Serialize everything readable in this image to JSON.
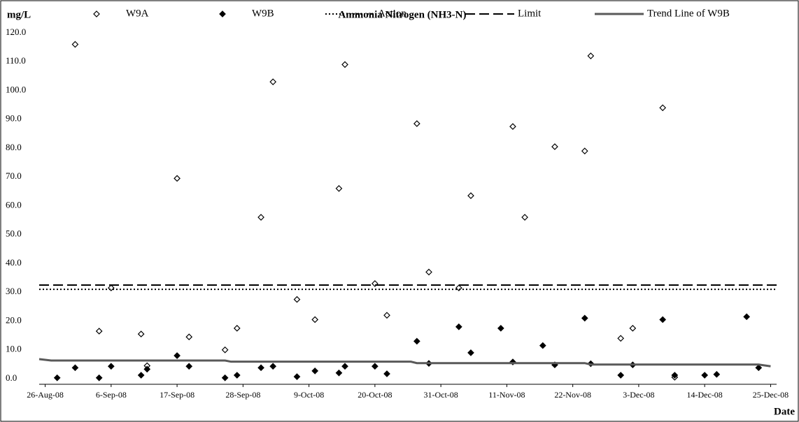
{
  "chart_data": {
    "type": "scatter",
    "title": "Ammonia Nitrogen (NH3-N)",
    "y_label": "mg/L",
    "x_label": "Date",
    "xlim": [
      "2008-08-25",
      "2008-12-26"
    ],
    "ylim": [
      0,
      120
    ],
    "xticks": [
      {
        "value": "2008-08-26",
        "label": "26-Aug-08"
      },
      {
        "value": "2008-09-06",
        "label": "6-Sep-08"
      },
      {
        "value": "2008-09-17",
        "label": "17-Sep-08"
      },
      {
        "value": "2008-09-28",
        "label": "28-Sep-08"
      },
      {
        "value": "2008-10-09",
        "label": "9-Oct-08"
      },
      {
        "value": "2008-10-20",
        "label": "20-Oct-08"
      },
      {
        "value": "2008-10-31",
        "label": "31-Oct-08"
      },
      {
        "value": "2008-11-11",
        "label": "11-Nov-08"
      },
      {
        "value": "2008-11-22",
        "label": "22-Nov-08"
      },
      {
        "value": "2008-12-03",
        "label": "3-Dec-08"
      },
      {
        "value": "2008-12-14",
        "label": "14-Dec-08"
      },
      {
        "value": "2008-12-25",
        "label": "25-Dec-08"
      }
    ],
    "yticks": [
      {
        "value": 0,
        "label": "0.0"
      },
      {
        "value": 10,
        "label": "10.0"
      },
      {
        "value": 20,
        "label": "20.0"
      },
      {
        "value": 30,
        "label": "30.0"
      },
      {
        "value": 40,
        "label": "40.0"
      },
      {
        "value": 50,
        "label": "50.0"
      },
      {
        "value": 60,
        "label": "60.0"
      },
      {
        "value": 70,
        "label": "70.0"
      },
      {
        "value": 80,
        "label": "80.0"
      },
      {
        "value": 90,
        "label": "90.0"
      },
      {
        "value": 100,
        "label": "100.0"
      },
      {
        "value": 110,
        "label": "110.0"
      },
      {
        "value": 120,
        "label": "120.0"
      }
    ],
    "series": [
      {
        "name": "W9A",
        "color": "#000000",
        "marker": "diamond-open",
        "x": [
          "2008-08-31",
          "2008-09-04",
          "2008-09-06",
          "2008-09-11",
          "2008-09-12",
          "2008-09-17",
          "2008-09-19",
          "2008-09-25",
          "2008-09-27",
          "2008-10-01",
          "2008-10-03",
          "2008-10-07",
          "2008-10-10",
          "2008-10-14",
          "2008-10-15",
          "2008-10-20",
          "2008-10-22",
          "2008-10-27",
          "2008-10-29",
          "2008-11-03",
          "2008-11-05",
          "2008-11-12",
          "2008-11-14",
          "2008-11-19",
          "2008-11-24",
          "2008-11-25",
          "2008-11-30",
          "2008-12-02",
          "2008-12-07",
          "2008-12-09"
        ],
        "values": [
          116,
          16.5,
          31.5,
          15.5,
          4.5,
          69.5,
          14.5,
          10,
          17.5,
          56,
          103,
          27.5,
          20.5,
          66,
          109,
          33,
          22,
          88.5,
          37,
          31.5,
          63.5,
          87.5,
          56,
          80.5,
          79,
          112,
          14,
          17.5,
          94,
          0.5
        ]
      },
      {
        "name": "W9B",
        "color": "#000000",
        "marker": "diamond",
        "x": [
          "2008-08-28",
          "2008-08-31",
          "2008-09-04",
          "2008-09-06",
          "2008-09-11",
          "2008-09-12",
          "2008-09-17",
          "2008-09-19",
          "2008-09-25",
          "2008-09-27",
          "2008-10-01",
          "2008-10-03",
          "2008-10-07",
          "2008-10-10",
          "2008-10-14",
          "2008-10-15",
          "2008-10-20",
          "2008-10-22",
          "2008-10-27",
          "2008-10-29",
          "2008-11-03",
          "2008-11-05",
          "2008-11-10",
          "2008-11-12",
          "2008-11-17",
          "2008-11-19",
          "2008-11-24",
          "2008-11-25",
          "2008-11-30",
          "2008-12-02",
          "2008-12-07",
          "2008-12-09",
          "2008-12-14",
          "2008-12-16",
          "2008-12-21",
          "2008-12-23"
        ],
        "values": [
          0.3,
          3.8,
          0.3,
          4.3,
          1.2,
          3.3,
          8,
          4.3,
          0.3,
          1.2,
          3.8,
          4.3,
          0.7,
          2.7,
          2,
          4.3,
          4.3,
          1.7,
          13,
          5.3,
          18,
          9,
          17.5,
          5.8,
          11.5,
          4.8,
          21,
          5.2,
          1.2,
          4.8,
          20.5,
          1.2,
          1.2,
          1.5,
          21.5,
          3.8
        ]
      },
      {
        "name": "Action",
        "color": "#000000",
        "line": "dotted",
        "x": [
          "2008-08-25",
          "2008-12-26"
        ],
        "values": [
          31,
          31
        ]
      },
      {
        "name": "Limit",
        "color": "#000000",
        "line": "dashed",
        "x": [
          "2008-08-25",
          "2008-12-26"
        ],
        "values": [
          32.5,
          32.5
        ]
      },
      {
        "name": "Trend Line of W9B",
        "color": "#595959",
        "line": "solid",
        "x": [
          "2008-08-25",
          "2008-08-27",
          "2008-09-25",
          "2008-09-26",
          "2008-10-26",
          "2008-10-27",
          "2008-11-24",
          "2008-11-25",
          "2008-12-23",
          "2008-12-25"
        ],
        "values": [
          6.8,
          6.3,
          6.3,
          5.9,
          5.9,
          5.4,
          5.4,
          4.9,
          4.9,
          4.3
        ]
      }
    ]
  }
}
